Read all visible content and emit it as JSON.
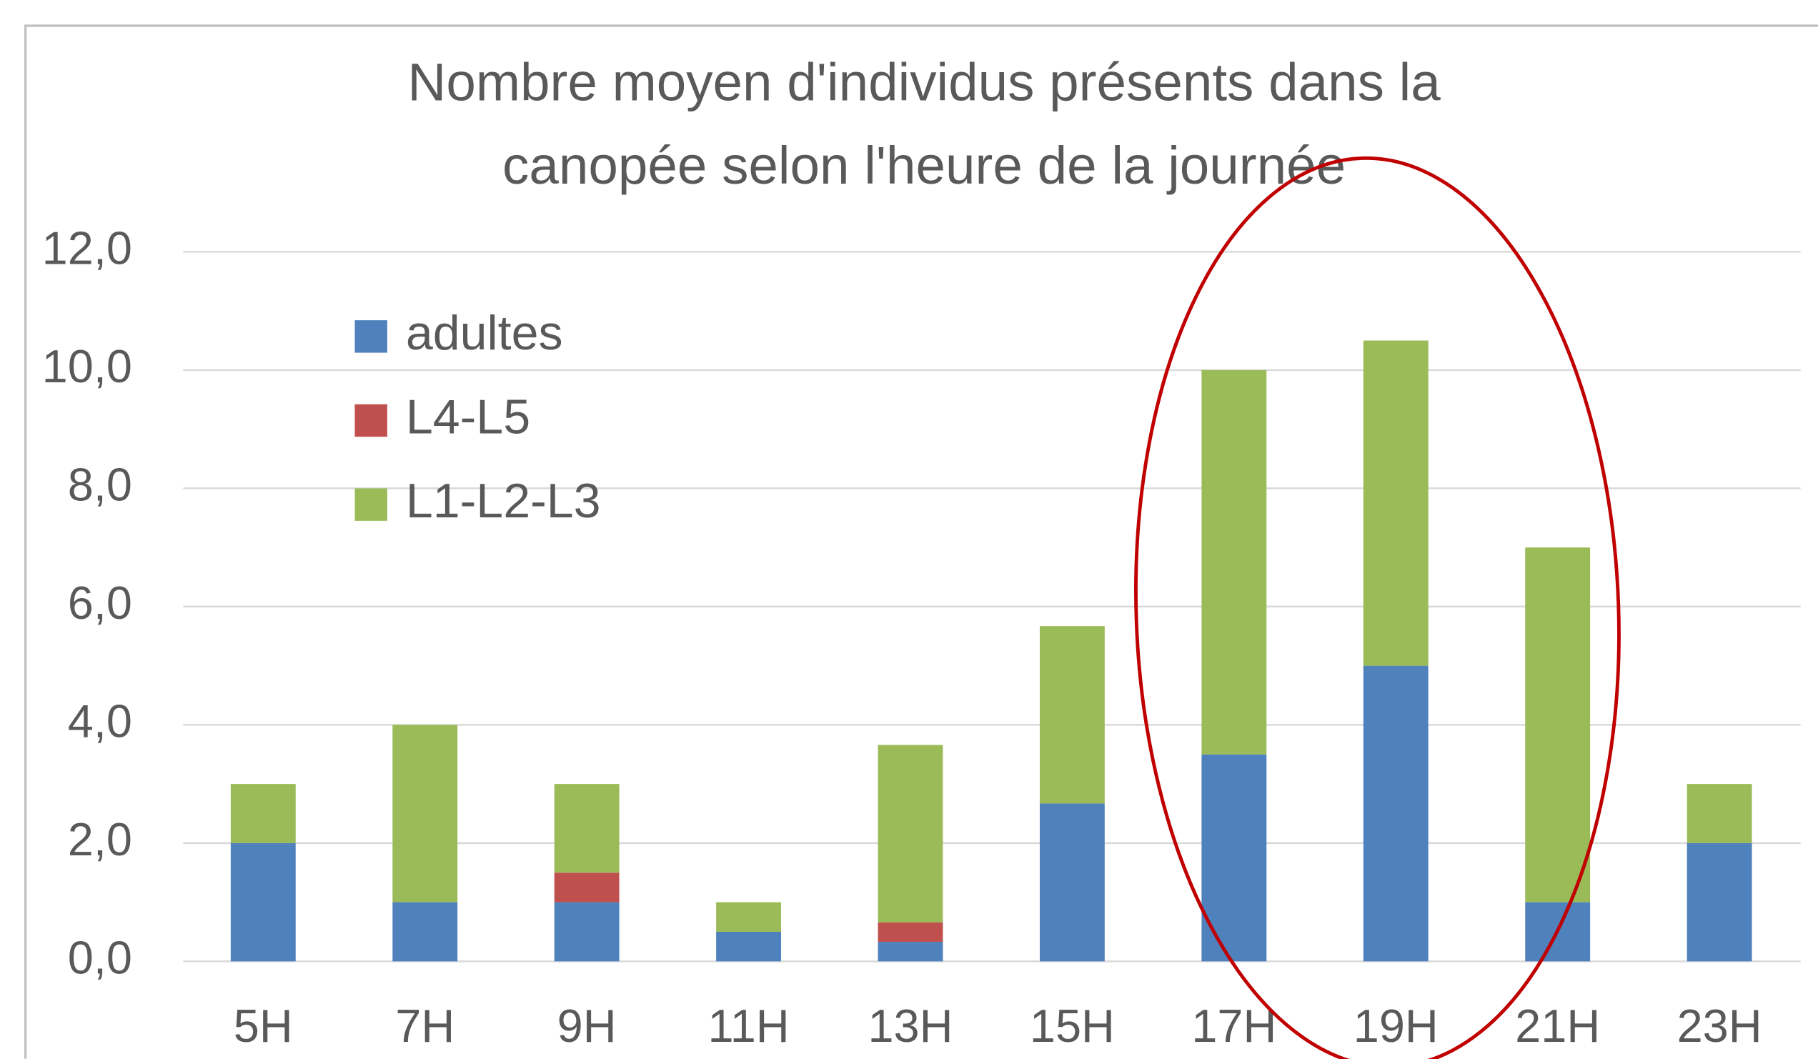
{
  "chart_data": {
    "type": "stacked_bar",
    "title": "Nombre moyen d'individus présents dans la canopée selon l'heure de la journée",
    "categories": [
      "5H",
      "7H",
      "9H",
      "11H",
      "13H",
      "15H",
      "17H",
      "19H",
      "21H",
      "23H"
    ],
    "series": [
      {
        "name": "adultes",
        "color": "#4f81bd",
        "values": [
          2,
          1,
          1,
          0.5,
          0.33,
          2.67,
          3.5,
          5,
          1,
          2
        ]
      },
      {
        "name": "L4-L5",
        "color": "#c0504d",
        "values": [
          0,
          0,
          0.5,
          0,
          0.33,
          0,
          0,
          0,
          0,
          0
        ]
      },
      {
        "name": "L1-L2-L3",
        "color": "#9bbb59",
        "values": [
          1,
          3,
          1.5,
          0.5,
          3,
          3,
          6.5,
          5.5,
          6,
          1
        ]
      }
    ],
    "ylim": [
      0,
      12
    ],
    "yticks": [
      {
        "value": 0,
        "label": "0,0"
      },
      {
        "value": 2,
        "label": "2,0"
      },
      {
        "value": 4,
        "label": "4,0"
      },
      {
        "value": 6,
        "label": "6,0"
      },
      {
        "value": 8,
        "label": "8,0"
      },
      {
        "value": 10,
        "label": "10,0"
      },
      {
        "value": 12,
        "label": "12,0"
      }
    ],
    "grid": true,
    "legend": "upper left"
  }
}
